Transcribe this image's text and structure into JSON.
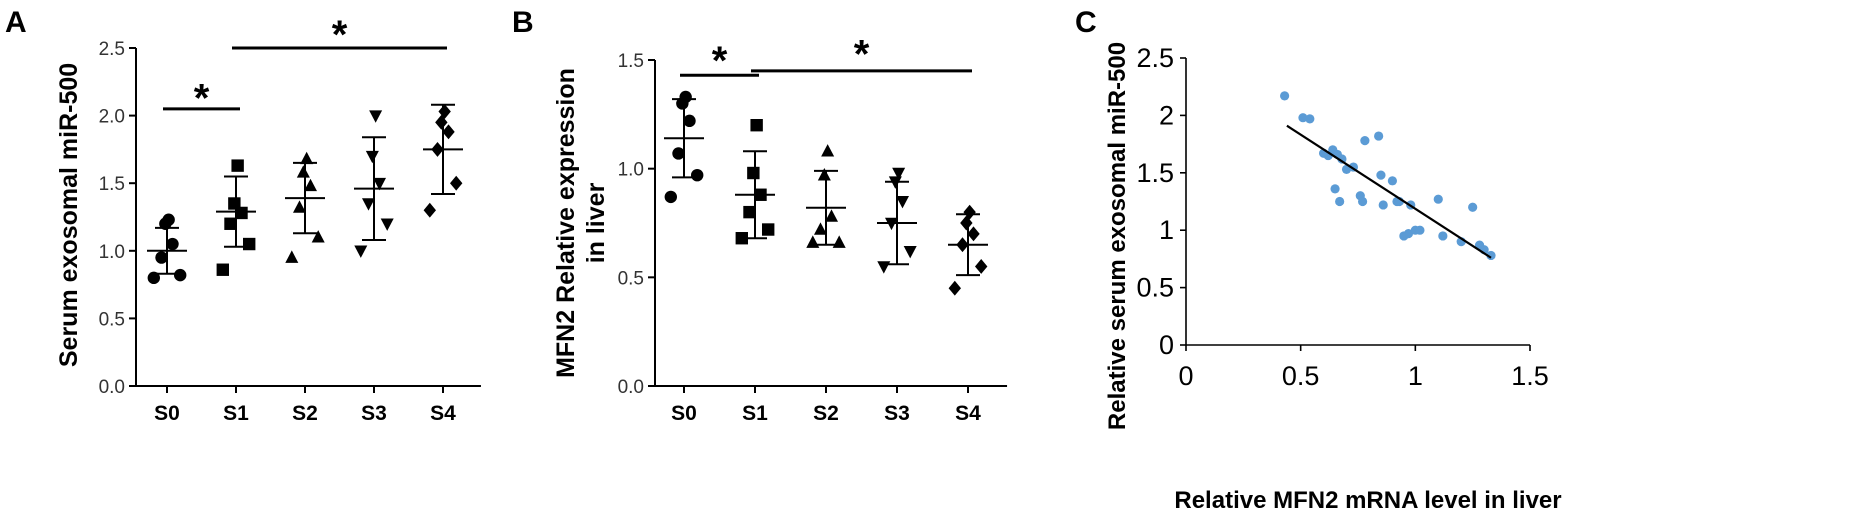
{
  "chart_data": [
    {
      "panel": "A",
      "type": "scatter",
      "ylabel": "Serum exosomal miR-500",
      "xlabel": "",
      "categories": [
        "S0",
        "S1",
        "S2",
        "S3",
        "S4"
      ],
      "markers": [
        "circle",
        "square",
        "triangle-up",
        "triangle-down",
        "diamond"
      ],
      "ylim": [
        0,
        2.5
      ],
      "yticks": [
        "0.0",
        "0.5",
        "1.0",
        "1.5",
        "2.0",
        "2.5"
      ],
      "points": [
        [
          0.8,
          0.82,
          0.95,
          1.05,
          1.2,
          1.23
        ],
        [
          0.86,
          1.05,
          1.2,
          1.28,
          1.35,
          1.63
        ],
        [
          0.95,
          1.1,
          1.32,
          1.48,
          1.58,
          1.68
        ],
        [
          1.0,
          1.2,
          1.35,
          1.5,
          1.7,
          2.0
        ],
        [
          1.3,
          1.5,
          1.75,
          1.88,
          1.95,
          2.03
        ]
      ],
      "mean": [
        1.0,
        1.29,
        1.39,
        1.46,
        1.75
      ],
      "sd": [
        0.17,
        0.26,
        0.26,
        0.38,
        0.33
      ],
      "significance": [
        {
          "from": "S0",
          "to": "S1",
          "label": "*",
          "y": 2.05,
          "label_y": 2.15
        },
        {
          "from": "S1",
          "to": "S4",
          "label": "*",
          "y": 2.5,
          "label_y": 2.62
        }
      ]
    },
    {
      "panel": "B",
      "type": "scatter",
      "ylabel": "MFN2 Relative expression in liver",
      "ylabel_lines": [
        "MFN2 Relative  expression",
        "in liver"
      ],
      "xlabel": "",
      "categories": [
        "S0",
        "S1",
        "S2",
        "S3",
        "S4"
      ],
      "markers": [
        "circle",
        "square",
        "triangle-up",
        "triangle-down",
        "diamond"
      ],
      "ylim": [
        0,
        1.5
      ],
      "yticks": [
        "0.0",
        "0.5",
        "1.0",
        "1.5"
      ],
      "points": [
        [
          0.87,
          0.97,
          1.07,
          1.22,
          1.3,
          1.33
        ],
        [
          0.68,
          0.72,
          0.8,
          0.88,
          0.98,
          1.2
        ],
        [
          0.66,
          0.66,
          0.72,
          0.78,
          0.97,
          1.08
        ],
        [
          0.55,
          0.62,
          0.75,
          0.85,
          0.94,
          0.98
        ],
        [
          0.45,
          0.55,
          0.65,
          0.7,
          0.75,
          0.8
        ]
      ],
      "mean": [
        1.14,
        0.88,
        0.82,
        0.75,
        0.65
      ],
      "sd": [
        0.18,
        0.2,
        0.17,
        0.19,
        0.14
      ],
      "significance": [
        {
          "from": "S0",
          "to": "S1",
          "label": "*",
          "y": 1.43,
          "label_y": 1.51
        },
        {
          "from": "S1",
          "to": "S4",
          "label": "*",
          "y": 1.45,
          "label_y": 1.54
        }
      ]
    },
    {
      "panel": "C",
      "type": "scatter",
      "xlabel": "Relative MFN2 mRNA level in liver",
      "ylabel": "Relative serum exosomal miR-500",
      "xlim": [
        0,
        1.5
      ],
      "ylim": [
        0,
        2.5
      ],
      "xticks": [
        "0",
        "0.5",
        "1",
        "1.5"
      ],
      "yticks": [
        "0",
        "0.5",
        "1",
        "1.5",
        "2",
        "2.5"
      ],
      "color": "#5b9bd5",
      "points": [
        [
          0.43,
          2.17
        ],
        [
          0.51,
          1.98
        ],
        [
          0.54,
          1.97
        ],
        [
          0.6,
          1.67
        ],
        [
          0.62,
          1.65
        ],
        [
          0.64,
          1.7
        ],
        [
          0.65,
          1.36
        ],
        [
          0.66,
          1.66
        ],
        [
          0.67,
          1.25
        ],
        [
          0.68,
          1.62
        ],
        [
          0.7,
          1.53
        ],
        [
          0.73,
          1.55
        ],
        [
          0.76,
          1.3
        ],
        [
          0.77,
          1.25
        ],
        [
          0.78,
          1.78
        ],
        [
          0.84,
          1.82
        ],
        [
          0.85,
          1.48
        ],
        [
          0.86,
          1.22
        ],
        [
          0.9,
          1.43
        ],
        [
          0.92,
          1.25
        ],
        [
          0.93,
          1.25
        ],
        [
          0.95,
          0.95
        ],
        [
          0.97,
          0.97
        ],
        [
          0.98,
          1.22
        ],
        [
          1.0,
          1.0
        ],
        [
          1.02,
          1.0
        ],
        [
          1.1,
          1.27
        ],
        [
          1.12,
          0.95
        ],
        [
          1.2,
          0.9
        ],
        [
          1.25,
          1.2
        ],
        [
          1.28,
          0.87
        ],
        [
          1.3,
          0.83
        ],
        [
          1.33,
          0.78
        ]
      ],
      "trendline": [
        [
          0.44,
          1.91
        ],
        [
          1.33,
          0.76
        ]
      ]
    }
  ]
}
